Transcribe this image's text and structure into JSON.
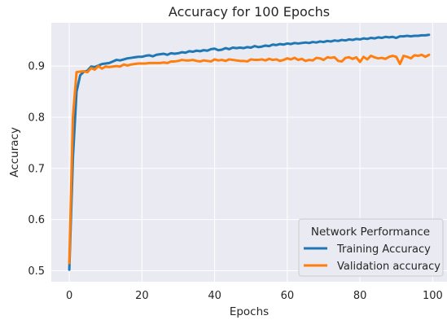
{
  "chart_data": {
    "type": "line",
    "title": "Accuracy for 100 Epochs",
    "xlabel": "Epochs",
    "ylabel": "Accuracy",
    "xlim": [
      -4.95,
      103.95
    ],
    "ylim": [
      0.4785,
      0.9845
    ],
    "xticks": [
      0,
      20,
      40,
      60,
      80,
      100
    ],
    "yticks": [
      0.5,
      0.6,
      0.7,
      0.8,
      0.9
    ],
    "ytick_labels": [
      "0.5",
      "0.6",
      "0.7",
      "0.8",
      "0.9"
    ],
    "grid": true,
    "legend": {
      "title": "Network Performance",
      "position": "lower-right"
    },
    "series": [
      {
        "name": "Training Accuracy",
        "color": "#1f77b4",
        "x": [
          0,
          1,
          2,
          3,
          4,
          5,
          6,
          7,
          8,
          9,
          10,
          11,
          12,
          13,
          14,
          15,
          16,
          17,
          18,
          19,
          20,
          21,
          22,
          23,
          24,
          25,
          26,
          27,
          28,
          29,
          30,
          31,
          32,
          33,
          34,
          35,
          36,
          37,
          38,
          39,
          40,
          41,
          42,
          43,
          44,
          45,
          46,
          47,
          48,
          49,
          50,
          51,
          52,
          53,
          54,
          55,
          56,
          57,
          58,
          59,
          60,
          61,
          62,
          63,
          64,
          65,
          66,
          67,
          68,
          69,
          70,
          71,
          72,
          73,
          74,
          75,
          76,
          77,
          78,
          79,
          80,
          81,
          82,
          83,
          84,
          85,
          86,
          87,
          88,
          89,
          90,
          91,
          92,
          93,
          94,
          95,
          96,
          97,
          98,
          99
        ],
        "values": [
          0.502,
          0.72,
          0.85,
          0.882,
          0.889,
          0.891,
          0.899,
          0.898,
          0.901,
          0.904,
          0.905,
          0.906,
          0.909,
          0.912,
          0.911,
          0.913,
          0.915,
          0.916,
          0.917,
          0.918,
          0.918,
          0.92,
          0.921,
          0.919,
          0.922,
          0.923,
          0.924,
          0.922,
          0.925,
          0.924,
          0.925,
          0.927,
          0.926,
          0.929,
          0.928,
          0.93,
          0.929,
          0.931,
          0.93,
          0.933,
          0.934,
          0.931,
          0.932,
          0.935,
          0.933,
          0.936,
          0.935,
          0.936,
          0.935,
          0.937,
          0.936,
          0.939,
          0.937,
          0.938,
          0.94,
          0.939,
          0.942,
          0.941,
          0.943,
          0.942,
          0.944,
          0.943,
          0.945,
          0.944,
          0.945,
          0.946,
          0.945,
          0.947,
          0.946,
          0.948,
          0.947,
          0.949,
          0.948,
          0.95,
          0.949,
          0.951,
          0.95,
          0.952,
          0.951,
          0.953,
          0.952,
          0.954,
          0.953,
          0.955,
          0.954,
          0.956,
          0.955,
          0.957,
          0.956,
          0.957,
          0.955,
          0.958,
          0.958,
          0.959,
          0.958,
          0.959,
          0.959,
          0.96,
          0.96,
          0.961
        ]
      },
      {
        "name": "Validation accuracy",
        "color": "#ff7f0e",
        "x": [
          0,
          1,
          2,
          3,
          4,
          5,
          6,
          7,
          8,
          9,
          10,
          11,
          12,
          13,
          14,
          15,
          16,
          17,
          18,
          19,
          20,
          21,
          22,
          23,
          24,
          25,
          26,
          27,
          28,
          29,
          30,
          31,
          32,
          33,
          34,
          35,
          36,
          37,
          38,
          39,
          40,
          41,
          42,
          43,
          44,
          45,
          46,
          47,
          48,
          49,
          50,
          51,
          52,
          53,
          54,
          55,
          56,
          57,
          58,
          59,
          60,
          61,
          62,
          63,
          64,
          65,
          66,
          67,
          68,
          69,
          70,
          71,
          72,
          73,
          74,
          75,
          76,
          77,
          78,
          79,
          80,
          81,
          82,
          83,
          84,
          85,
          86,
          87,
          88,
          89,
          90,
          91,
          92,
          93,
          94,
          95,
          96,
          97,
          98,
          99
        ],
        "values": [
          0.515,
          0.8,
          0.888,
          0.889,
          0.89,
          0.888,
          0.896,
          0.893,
          0.9,
          0.895,
          0.899,
          0.898,
          0.899,
          0.9,
          0.899,
          0.903,
          0.901,
          0.903,
          0.904,
          0.905,
          0.905,
          0.905,
          0.906,
          0.906,
          0.906,
          0.906,
          0.907,
          0.906,
          0.909,
          0.909,
          0.91,
          0.912,
          0.911,
          0.911,
          0.912,
          0.91,
          0.909,
          0.911,
          0.91,
          0.909,
          0.913,
          0.911,
          0.912,
          0.91,
          0.913,
          0.912,
          0.911,
          0.91,
          0.91,
          0.909,
          0.913,
          0.912,
          0.912,
          0.913,
          0.911,
          0.914,
          0.912,
          0.913,
          0.91,
          0.912,
          0.915,
          0.913,
          0.916,
          0.912,
          0.914,
          0.91,
          0.912,
          0.911,
          0.916,
          0.915,
          0.912,
          0.917,
          0.916,
          0.917,
          0.91,
          0.909,
          0.916,
          0.917,
          0.914,
          0.917,
          0.908,
          0.918,
          0.913,
          0.92,
          0.917,
          0.915,
          0.916,
          0.914,
          0.918,
          0.92,
          0.918,
          0.904,
          0.92,
          0.918,
          0.915,
          0.921,
          0.92,
          0.922,
          0.918,
          0.922
        ]
      }
    ]
  }
}
